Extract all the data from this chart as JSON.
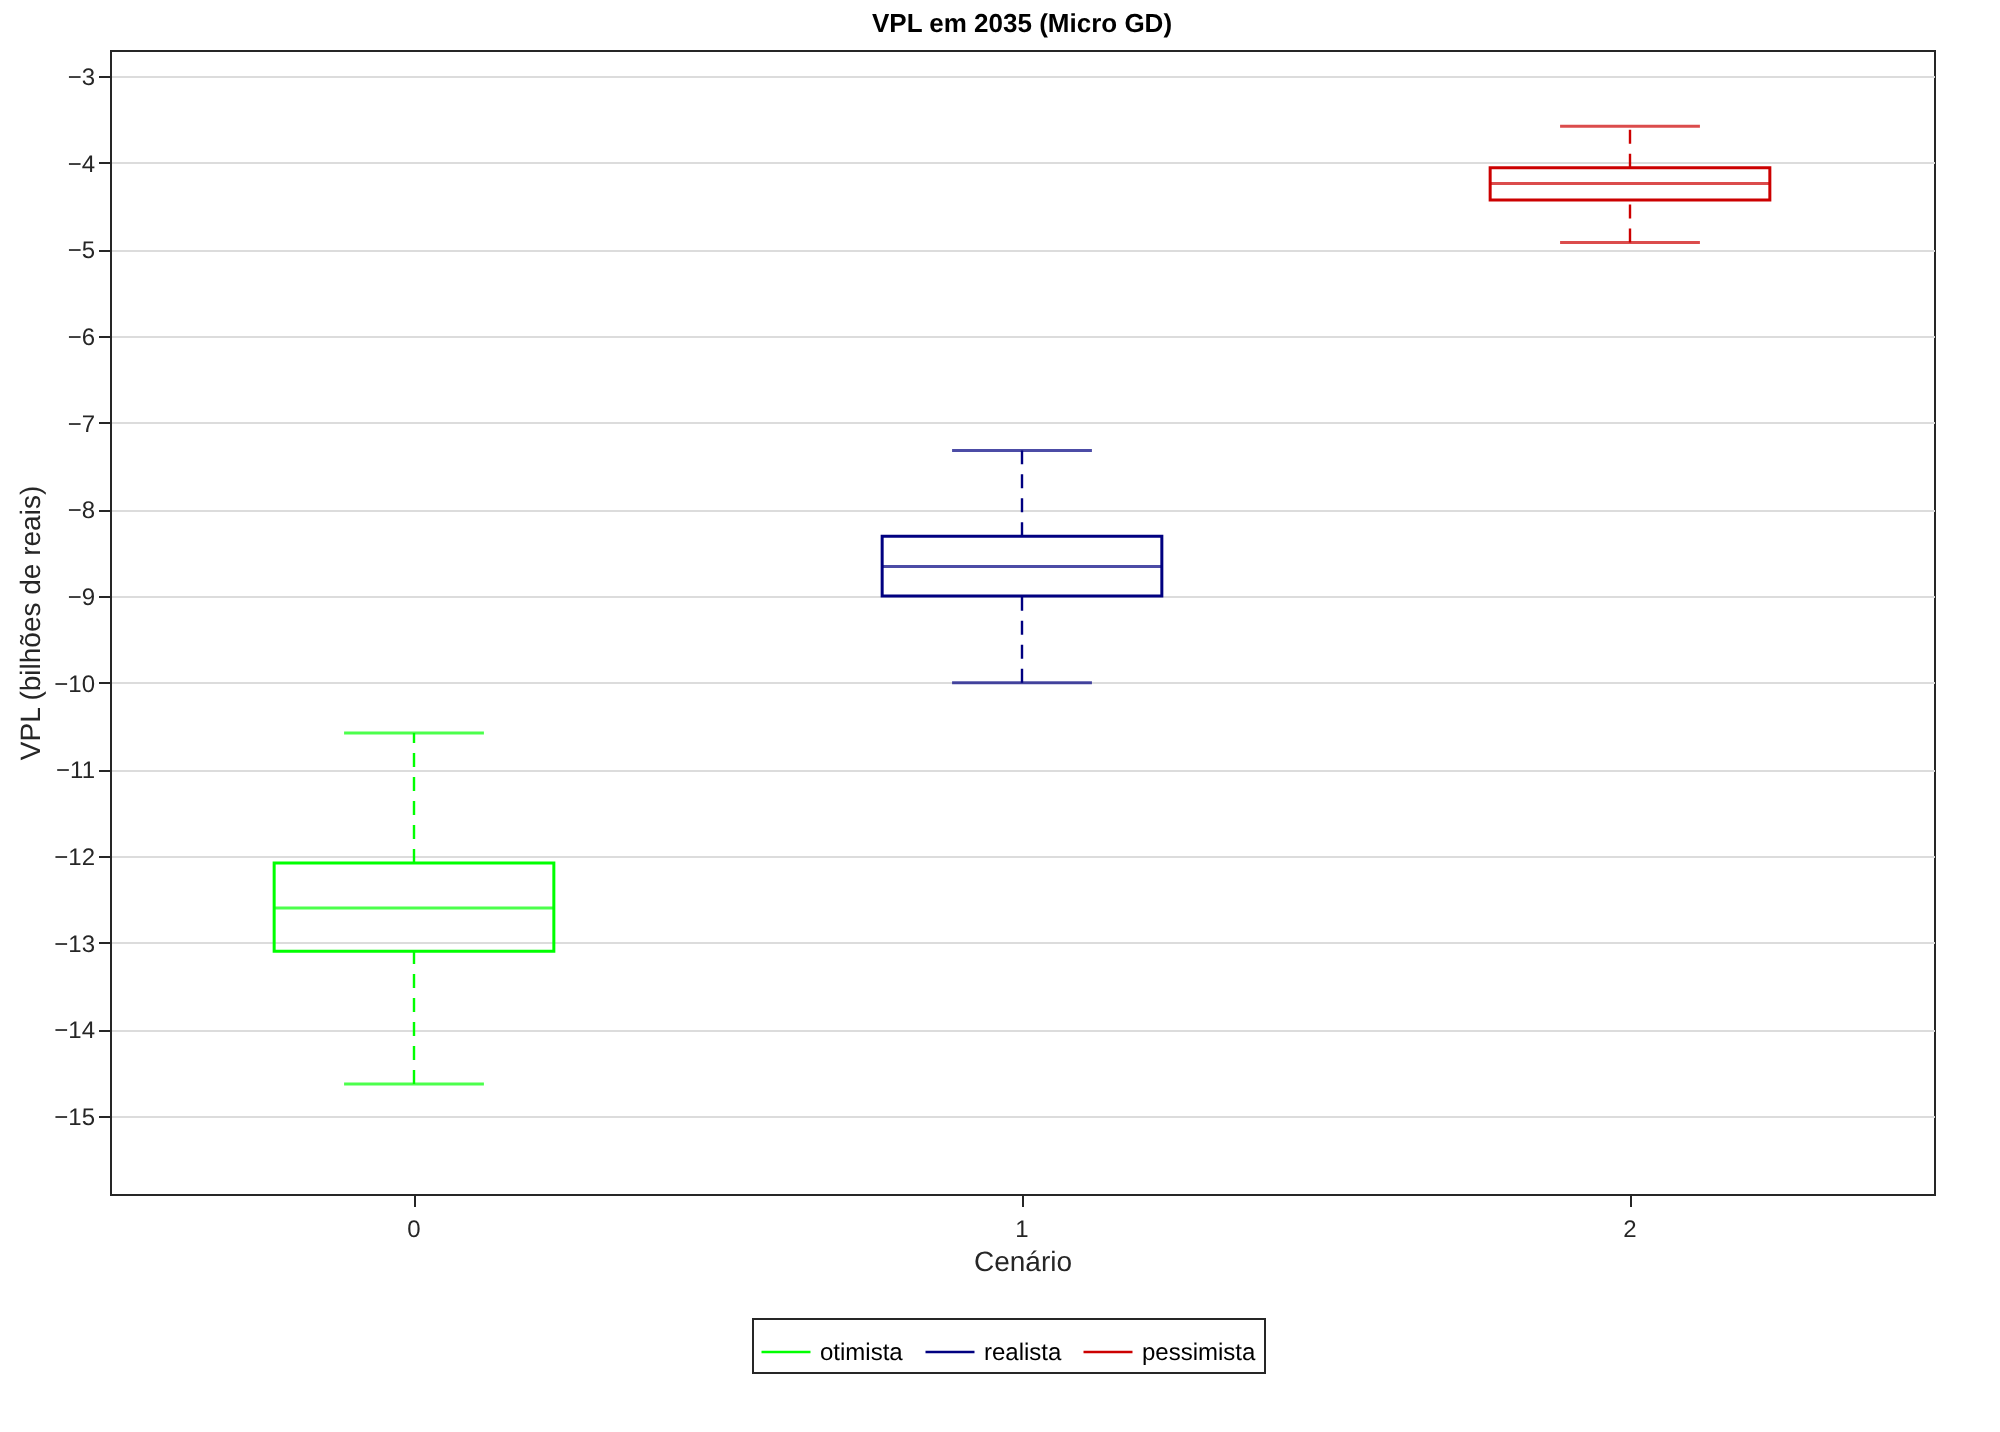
{
  "chart_data": {
    "type": "box",
    "title": "VPL em 2035 (Micro GD)",
    "xlabel": "Cenário",
    "ylabel": "VPL (bilhões de reais)",
    "categories": [
      "0",
      "1",
      "2"
    ],
    "series": [
      {
        "name": "otimista",
        "color": "#00ff00",
        "boxes": [
          {
            "low": -14.63,
            "q1": -13.1,
            "median": -12.6,
            "q3": -12.08,
            "high": -10.58
          },
          null,
          null
        ]
      },
      {
        "name": "realista",
        "color": "#000080",
        "boxes": [
          null,
          {
            "low": -10.0,
            "q1": -9.0,
            "median": -8.66,
            "q3": -8.31,
            "high": -7.32
          },
          null
        ]
      },
      {
        "name": "pessimista",
        "color": "#cc0000",
        "boxes": [
          null,
          null,
          {
            "low": -4.92,
            "q1": -4.43,
            "median": -4.24,
            "q3": -4.06,
            "high": -3.58
          }
        ]
      }
    ],
    "ylim": [
      -15.9,
      -2.7
    ],
    "yticks": [
      -15,
      -14,
      -13,
      -12,
      -11,
      -10,
      -9,
      -8,
      -7,
      -6,
      -5,
      -4,
      -3
    ],
    "grid": "y",
    "legend": "bottom",
    "line_style": "dashed"
  }
}
